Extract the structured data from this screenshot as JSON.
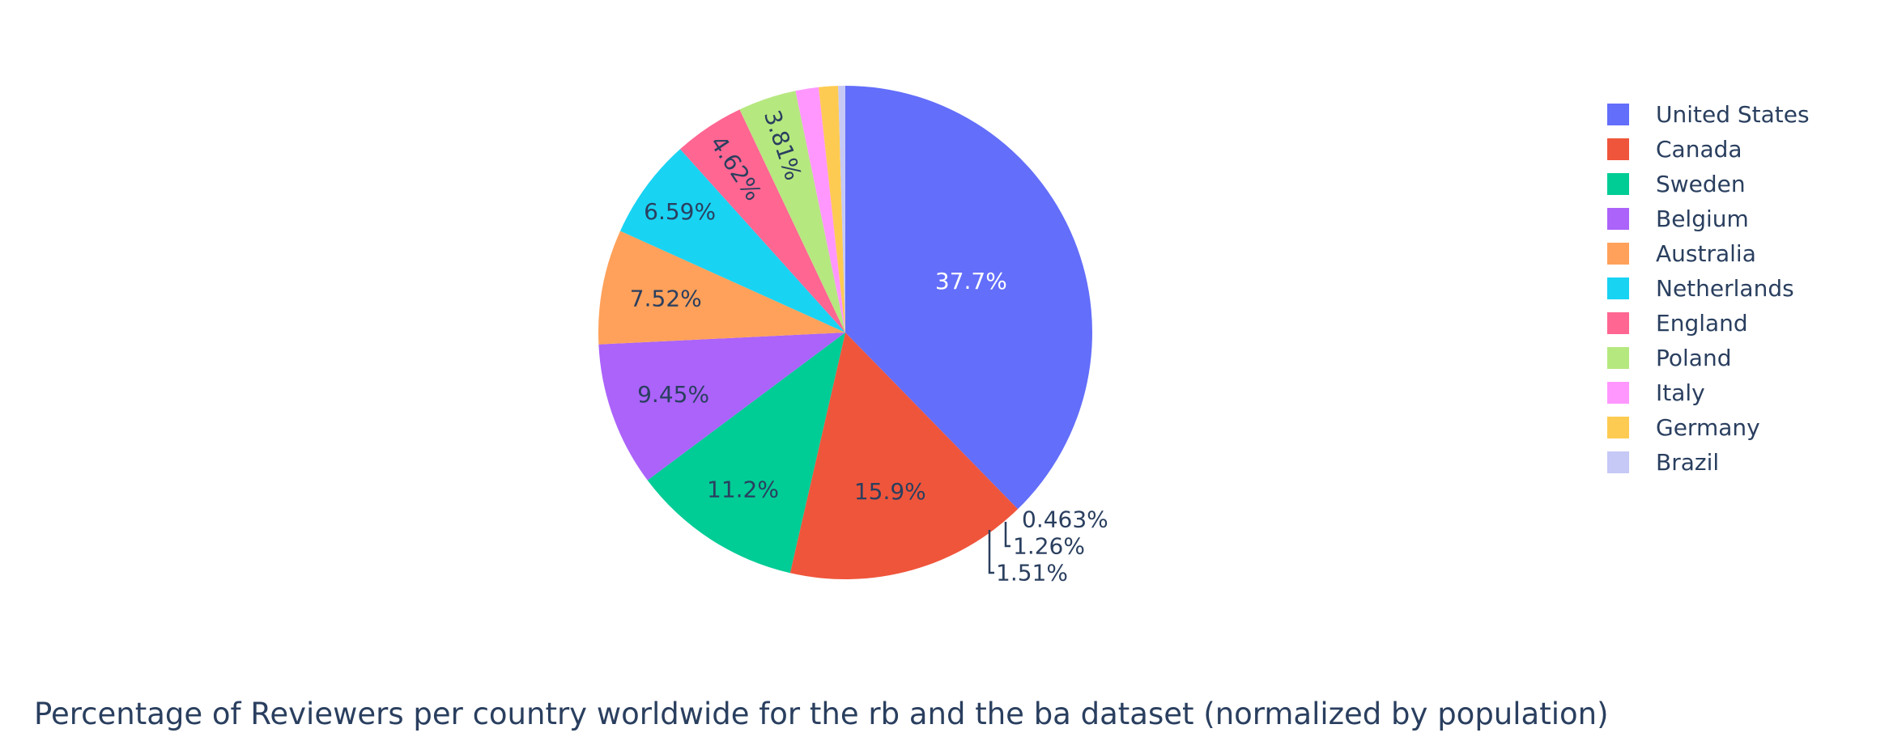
{
  "chart_data": {
    "type": "pie",
    "title": "Percentage of Reviewers per country worldwide for the rb and the ba dataset (normalized by population)",
    "slices": [
      {
        "label": "United States",
        "value": 37.7,
        "text": "37.7%",
        "color": "#636efa"
      },
      {
        "label": "Canada",
        "value": 15.9,
        "text": "15.9%",
        "color": "#EF553B"
      },
      {
        "label": "Sweden",
        "value": 11.2,
        "text": "11.2%",
        "color": "#00cc96"
      },
      {
        "label": "Belgium",
        "value": 9.45,
        "text": "9.45%",
        "color": "#ab63fa"
      },
      {
        "label": "Australia",
        "value": 7.52,
        "text": "7.52%",
        "color": "#FFA15A"
      },
      {
        "label": "Netherlands",
        "value": 6.59,
        "text": "6.59%",
        "color": "#19d3f3"
      },
      {
        "label": "England",
        "value": 4.62,
        "text": "4.62%",
        "color": "#FF6692"
      },
      {
        "label": "Poland",
        "value": 3.81,
        "text": "3.81%",
        "color": "#B6E880"
      },
      {
        "label": "Italy",
        "value": 1.51,
        "text": "1.51%",
        "color": "#FF97FF"
      },
      {
        "label": "Germany",
        "value": 1.26,
        "text": "1.26%",
        "color": "#FECB52"
      },
      {
        "label": "Brazil",
        "value": 0.463,
        "text": "0.463%",
        "color": "#c6c9f5"
      }
    ],
    "sort": "descending",
    "direction": "clockwise",
    "legend_position": "right"
  }
}
